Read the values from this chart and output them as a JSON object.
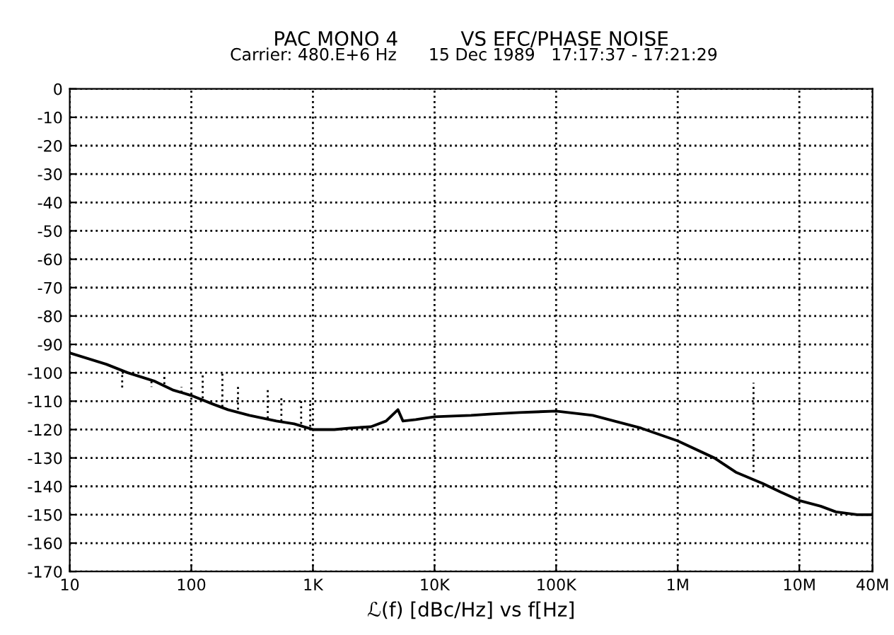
{
  "chart_data": {
    "type": "line",
    "title": "PAC MONO 4          VS EFC/PHASE NOISE",
    "subtitle": "Carrier: 480.E+6 Hz      15 Dec 1989   17:17:37 - 17:21:29",
    "xlabel": "ℒ(f) [dBc/Hz] vs f[Hz]",
    "log": "x",
    "grid": true,
    "legend": false,
    "xlim": [
      10,
      40000000
    ],
    "xticks": [
      {
        "value": 10,
        "label": "10"
      },
      {
        "value": 100,
        "label": "100"
      },
      {
        "value": 1000,
        "label": "1K"
      },
      {
        "value": 10000,
        "label": "10K"
      },
      {
        "value": 100000,
        "label": "100K"
      },
      {
        "value": 1000000,
        "label": "1M"
      },
      {
        "value": 10000000,
        "label": "10M"
      },
      {
        "value": 40000000,
        "label": "40M"
      }
    ],
    "ylim": [
      -170,
      0
    ],
    "yticks": [
      0,
      -10,
      -20,
      -30,
      -40,
      -50,
      -60,
      -70,
      -80,
      -90,
      -100,
      -110,
      -120,
      -130,
      -140,
      -150,
      -160,
      -170
    ],
    "series": [
      {
        "color": "#000000",
        "line_style": "solid",
        "x": [
          10,
          20,
          30,
          50,
          70,
          100,
          150,
          200,
          300,
          500,
          700,
          1000,
          1500,
          2000,
          3000,
          4000,
          5000,
          5500,
          7000,
          10000,
          20000,
          30000,
          50000,
          100000,
          200000,
          300000,
          500000,
          1000000,
          2000000,
          3000000,
          5000000,
          7000000,
          10000000,
          15000000,
          20000000,
          30000000,
          40000000
        ],
        "values": [
          -93,
          -97,
          -100,
          -103,
          -106,
          -108,
          -111,
          -113,
          -115,
          -117,
          -118,
          -120,
          -120,
          -119.5,
          -119,
          -117,
          -113,
          -117,
          -116.5,
          -115.5,
          -115,
          -114.5,
          -114,
          -113.5,
          -115,
          -117,
          -119.5,
          -124,
          -130,
          -135,
          -139,
          -142,
          -145,
          -147,
          -149,
          -150,
          -150
        ]
      },
      {
        "color": "#000000",
        "line_style": "dotted",
        "x": [
          27,
          27,
          null,
          47,
          47,
          null,
          60,
          60,
          null,
          83,
          83,
          null,
          124,
          124,
          null,
          180,
          180,
          null,
          242,
          242,
          null,
          425,
          425,
          null,
          550,
          550,
          null,
          800,
          800,
          null,
          950,
          950,
          null,
          4200000,
          4200000
        ],
        "values": [
          -99,
          -106,
          null,
          -103,
          -105,
          null,
          -104,
          -100,
          null,
          -107,
          -105,
          null,
          -109,
          -100,
          null,
          -112,
          -100,
          null,
          -113,
          -105,
          null,
          -116,
          -105,
          null,
          -117,
          -108,
          null,
          -118,
          -109,
          null,
          -119,
          -110,
          null,
          -135,
          -103.5
        ]
      }
    ]
  }
}
